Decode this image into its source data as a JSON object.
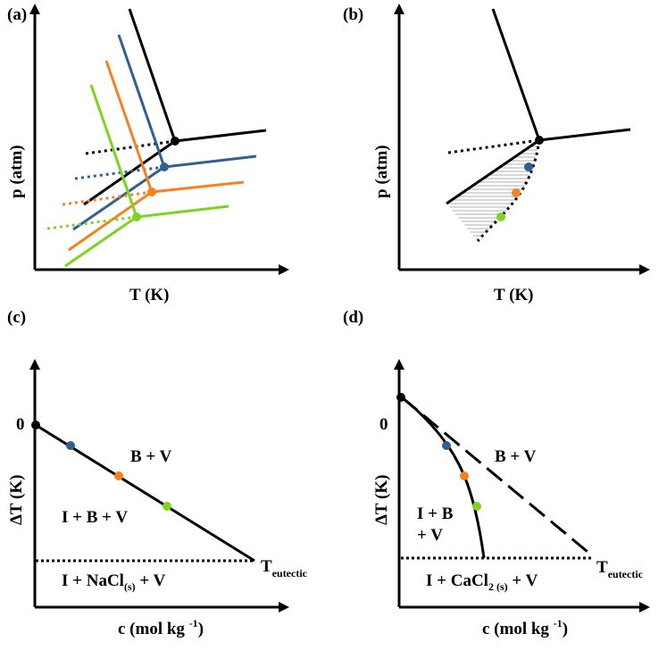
{
  "colors": {
    "black": "#000000",
    "blue": "#2f5f93",
    "orange": "#f5821f",
    "green": "#7ed321",
    "hatch": "#b0b0b0"
  },
  "panel_a": {
    "label": "(a)",
    "xlabel": "T (K)",
    "ylabel": "p (atm)"
  },
  "panel_b": {
    "label": "(b)",
    "xlabel": "T (K)",
    "ylabel": "p (atm)"
  },
  "panel_c": {
    "label": "(c)",
    "xlabel_main": "c (mol kg ",
    "xlabel_sup": "-1",
    "xlabel_end": ")",
    "ylabel": "ΔT (K)",
    "zero": "0",
    "region_bv": "B + V",
    "region_ibv": "I + B + V",
    "region_bottom_main": "I + NaCl",
    "region_bottom_sub": "(s)",
    "region_bottom_end": " + V",
    "eutectic_main": "T",
    "eutectic_sub": "eutectic"
  },
  "panel_d": {
    "label": "(d)",
    "xlabel_main": "c (mol kg ",
    "xlabel_sup": "-1",
    "xlabel_end": ")",
    "ylabel": "ΔT (K)",
    "zero": "0",
    "region_bv": "B + V",
    "region_ib_line1": "I + B",
    "region_ib_line2": "+ V",
    "region_bottom_main": "I + CaCl",
    "region_bottom_sub": "2 (s)",
    "region_bottom_end": " + V",
    "eutectic_main": "T",
    "eutectic_sub": "eutectic"
  }
}
